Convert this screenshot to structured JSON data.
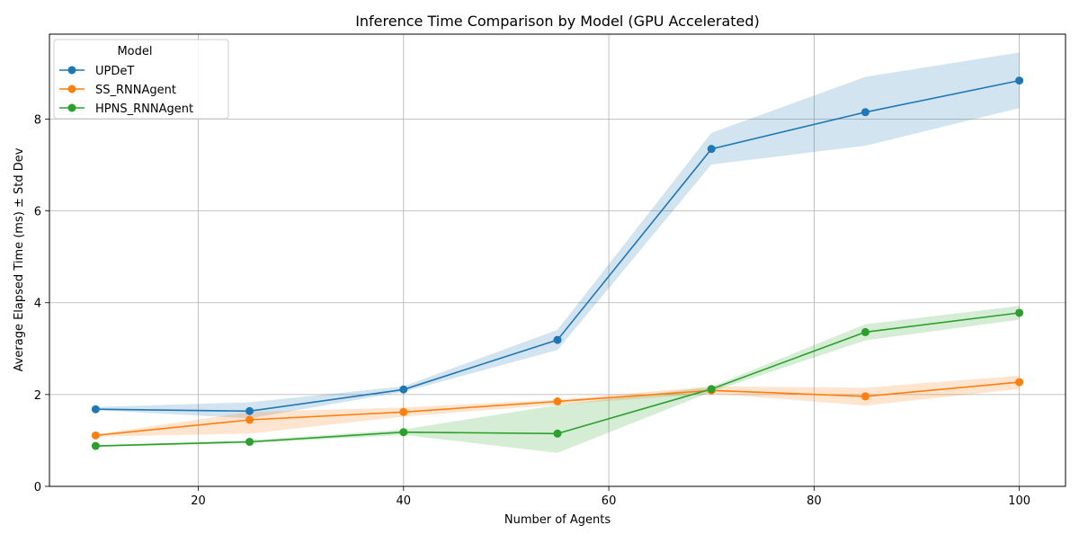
{
  "chart_data": {
    "type": "line",
    "title": "Inference Time Comparison by Model (GPU Accelerated)",
    "xlabel": "Number of Agents",
    "ylabel": "Average Elapsed Time (ms) ± Std Dev",
    "xlim": [
      5.5,
      104.5
    ],
    "ylim": [
      0,
      9.85
    ],
    "x_ticks": [
      20,
      40,
      60,
      80,
      100
    ],
    "y_ticks": [
      0,
      2,
      4,
      6,
      8
    ],
    "grid": true,
    "legend": {
      "title": "Model",
      "placement": "top-left"
    },
    "x": [
      10,
      25,
      40,
      55,
      70,
      85,
      100
    ],
    "series": [
      {
        "name": "UPDeT",
        "color": "#1f77b4",
        "values": [
          1.68,
          1.64,
          2.11,
          3.19,
          7.35,
          8.15,
          8.84
        ],
        "lower": [
          1.66,
          1.48,
          2.06,
          2.97,
          7.01,
          7.42,
          8.24
        ],
        "upper": [
          1.73,
          1.83,
          2.18,
          3.41,
          7.7,
          8.92,
          9.45
        ]
      },
      {
        "name": "SS_RNNAgent",
        "color": "#ff7f0e",
        "values": [
          1.11,
          1.45,
          1.62,
          1.85,
          2.09,
          1.96,
          2.27
        ],
        "lower": [
          1.08,
          1.15,
          1.52,
          1.78,
          2.02,
          1.76,
          2.12
        ],
        "upper": [
          1.13,
          1.62,
          1.72,
          1.89,
          2.18,
          2.15,
          2.41
        ]
      },
      {
        "name": "HPNS_RNNAgent",
        "color": "#2ca02c",
        "values": [
          0.88,
          0.97,
          1.18,
          1.15,
          2.12,
          3.36,
          3.78
        ],
        "lower": [
          0.86,
          0.94,
          1.12,
          0.73,
          2.06,
          3.18,
          3.63
        ],
        "upper": [
          0.9,
          1.0,
          1.24,
          1.77,
          2.17,
          3.53,
          3.93
        ]
      }
    ]
  }
}
